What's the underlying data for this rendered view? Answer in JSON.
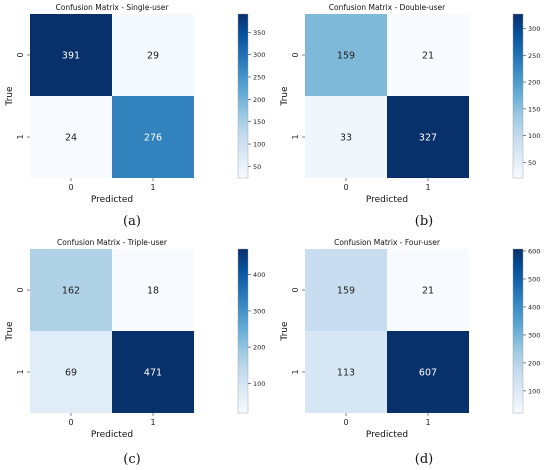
{
  "chart_data": [
    {
      "type": "heatmap",
      "title": "Confusion Matrix - Single-user",
      "xlabel": "Predicted",
      "ylabel": "True",
      "x_categories": [
        "0",
        "1"
      ],
      "y_categories": [
        "0",
        "1"
      ],
      "values": [
        [
          391,
          29
        ],
        [
          24,
          276
        ]
      ],
      "colormap": "Blues",
      "colorbar": {
        "ticks": [
          50,
          100,
          150,
          200,
          250,
          300,
          350
        ],
        "range": [
          24,
          391
        ]
      },
      "caption": "(a)"
    },
    {
      "type": "heatmap",
      "title": "Confusion Matrix - Double-user",
      "xlabel": "Predicted",
      "ylabel": "True",
      "x_categories": [
        "0",
        "1"
      ],
      "y_categories": [
        "0",
        "1"
      ],
      "values": [
        [
          159,
          21
        ],
        [
          33,
          327
        ]
      ],
      "colormap": "Blues",
      "colorbar": {
        "ticks": [
          50,
          100,
          150,
          200,
          250,
          300
        ],
        "range": [
          21,
          327
        ]
      },
      "caption": "(b)"
    },
    {
      "type": "heatmap",
      "title": "Confusion Matrix - Triple-user",
      "xlabel": "Predicted",
      "ylabel": "True",
      "x_categories": [
        "0",
        "1"
      ],
      "y_categories": [
        "0",
        "1"
      ],
      "values": [
        [
          162,
          18
        ],
        [
          69,
          471
        ]
      ],
      "colormap": "Blues",
      "colorbar": {
        "ticks": [
          100,
          200,
          300,
          400
        ],
        "range": [
          18,
          471
        ]
      },
      "caption": "(c)"
    },
    {
      "type": "heatmap",
      "title": "Confusion Matrix - Four-user",
      "xlabel": "Predicted",
      "ylabel": "True",
      "x_categories": [
        "0",
        "1"
      ],
      "y_categories": [
        "0",
        "1"
      ],
      "values": [
        [
          159,
          21
        ],
        [
          113,
          607
        ]
      ],
      "colormap": "Blues",
      "colorbar": {
        "ticks": [
          100,
          200,
          300,
          400,
          500,
          600
        ],
        "range": [
          21,
          607
        ]
      },
      "caption": "(d)"
    }
  ]
}
